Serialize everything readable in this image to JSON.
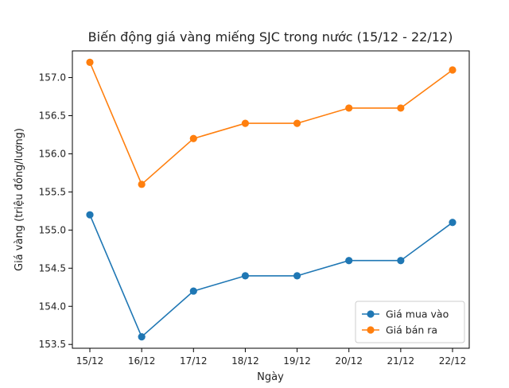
{
  "chart_data": {
    "type": "line",
    "title": "Biến động giá vàng miếng SJC trong nước (15/12 - 22/12)",
    "xlabel": "Ngày",
    "ylabel": "Giá vàng (triệu đồng/lượng)",
    "categories": [
      "15/12",
      "16/12",
      "17/12",
      "18/12",
      "19/12",
      "20/12",
      "21/12",
      "22/12"
    ],
    "ylim": [
      153.45,
      157.35
    ],
    "yticks": [
      "153.5",
      "154.0",
      "154.5",
      "155.0",
      "155.5",
      "156.0",
      "156.5",
      "157.0"
    ],
    "grid": false,
    "legend_position": "bottom-right",
    "series": [
      {
        "name": "Giá mua vào",
        "color": "#1f77b4",
        "values": [
          155.2,
          153.6,
          154.2,
          154.4,
          154.4,
          154.6,
          154.6,
          155.1
        ]
      },
      {
        "name": "Giá bán ra",
        "color": "#ff7f0e",
        "values": [
          157.2,
          155.6,
          156.2,
          156.4,
          156.4,
          156.6,
          156.6,
          157.1
        ]
      }
    ]
  }
}
